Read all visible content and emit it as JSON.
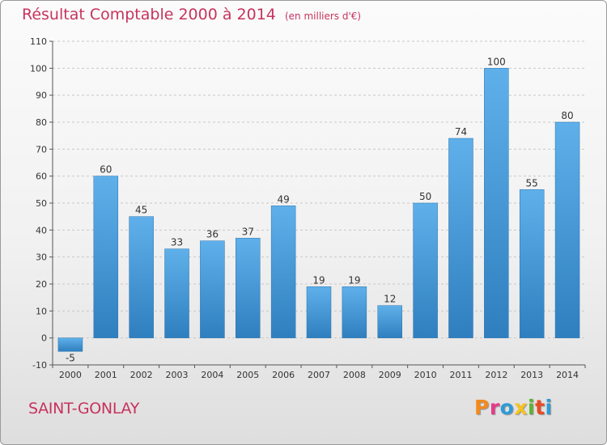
{
  "header": {
    "title": "Résultat Comptable 2000 à 2014",
    "subtitle": "(en milliers d'€)"
  },
  "footer": {
    "town": "SAINT-GONLAY",
    "brand": "Proxiti",
    "brand_colors": [
      "#f28a1e",
      "#e9388a",
      "#2e9bd6",
      "#f7c21b",
      "#5cb42d",
      "#e84b23",
      "#2e9bd6"
    ]
  },
  "colors": {
    "title": "#c7335e",
    "bar_top": "#5fb0ea",
    "bar_bottom": "#2f7fbf",
    "grid": "#c8c8c8",
    "axis": "#555555"
  },
  "chart_data": {
    "type": "bar",
    "categories": [
      "2000",
      "2001",
      "2002",
      "2003",
      "2004",
      "2005",
      "2006",
      "2007",
      "2008",
      "2009",
      "2010",
      "2011",
      "2012",
      "2013",
      "2014"
    ],
    "values": [
      -5,
      60,
      45,
      33,
      36,
      37,
      49,
      19,
      19,
      12,
      50,
      74,
      100,
      55,
      80
    ],
    "ylim": [
      -10,
      110
    ],
    "yticks": [
      -10,
      0,
      10,
      20,
      30,
      40,
      50,
      60,
      70,
      80,
      90,
      100,
      110
    ],
    "grid": "horizontal dashed",
    "legend": "none"
  }
}
